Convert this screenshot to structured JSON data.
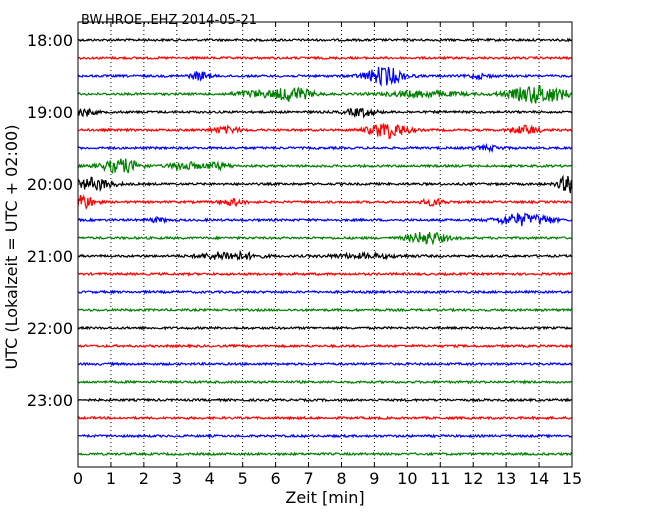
{
  "chart_data": {
    "type": "line",
    "title": "BW.HROE..EHZ 2014-05-21",
    "xlabel": "Zeit  [min]",
    "ylabel": "UTC (Lokalzeit = UTC + 02:00)",
    "xlim": [
      0,
      15
    ],
    "xticks": [
      "0",
      "1",
      "2",
      "3",
      "4",
      "5",
      "6",
      "7",
      "8",
      "9",
      "10",
      "11",
      "12",
      "13",
      "14",
      "15"
    ],
    "ylim": [
      "18:00",
      "23:45"
    ],
    "yticks": [
      "18:00",
      "19:00",
      "20:00",
      "21:00",
      "22:00",
      "23:00"
    ],
    "grid": "vertical dotted",
    "trace_colors": [
      "#000000",
      "#ff0000",
      "#0000ff",
      "#008000"
    ],
    "series": [
      {
        "start": "18:00",
        "color": "#000000",
        "events": []
      },
      {
        "start": "18:15",
        "color": "#ff0000",
        "events": []
      },
      {
        "start": "18:30",
        "color": "#0000ff",
        "events": [
          {
            "t": 3.7,
            "amp": 4,
            "dur": 0.4
          },
          {
            "t": 9.3,
            "amp": 9,
            "dur": 0.8
          },
          {
            "t": 12.2,
            "amp": 2,
            "dur": 0.5
          }
        ]
      },
      {
        "start": "18:45",
        "color": "#008000",
        "events": [
          {
            "t": 5.3,
            "amp": 3,
            "dur": 0.8
          },
          {
            "t": 6.5,
            "amp": 7,
            "dur": 0.8
          },
          {
            "t": 10.5,
            "amp": 3,
            "dur": 1.5
          },
          {
            "t": 14.0,
            "amp": 9,
            "dur": 1.2
          }
        ]
      },
      {
        "start": "19:00",
        "color": "#000000",
        "events": [
          {
            "t": 0.2,
            "amp": 4,
            "dur": 0.4
          },
          {
            "t": 8.6,
            "amp": 4,
            "dur": 0.6
          }
        ]
      },
      {
        "start": "19:15",
        "color": "#ff0000",
        "events": [
          {
            "t": 4.5,
            "amp": 3,
            "dur": 0.6
          },
          {
            "t": 9.4,
            "amp": 8,
            "dur": 0.8
          },
          {
            "t": 13.6,
            "amp": 4,
            "dur": 0.6
          }
        ]
      },
      {
        "start": "19:30",
        "color": "#0000ff",
        "events": [
          {
            "t": 12.5,
            "amp": 2,
            "dur": 0.6
          }
        ]
      },
      {
        "start": "19:45",
        "color": "#008000",
        "events": [
          {
            "t": 1.3,
            "amp": 7,
            "dur": 0.8
          },
          {
            "t": 3.2,
            "amp": 4,
            "dur": 0.6
          },
          {
            "t": 4.2,
            "amp": 3,
            "dur": 0.6
          }
        ]
      },
      {
        "start": "20:00",
        "color": "#000000",
        "events": [
          {
            "t": 0.5,
            "amp": 6,
            "dur": 0.8
          },
          {
            "t": 14.9,
            "amp": 9,
            "dur": 0.4
          }
        ]
      },
      {
        "start": "20:15",
        "color": "#ff0000",
        "events": [
          {
            "t": 0.1,
            "amp": 8,
            "dur": 0.5
          },
          {
            "t": 4.7,
            "amp": 3,
            "dur": 0.5
          },
          {
            "t": 10.8,
            "amp": 3,
            "dur": 0.5
          }
        ]
      },
      {
        "start": "20:30",
        "color": "#0000ff",
        "events": [
          {
            "t": 2.4,
            "amp": 2,
            "dur": 0.4
          },
          {
            "t": 13.4,
            "amp": 6,
            "dur": 0.9
          },
          {
            "t": 14.2,
            "amp": 3,
            "dur": 0.4
          }
        ]
      },
      {
        "start": "20:45",
        "color": "#008000",
        "events": [
          {
            "t": 10.6,
            "amp": 6,
            "dur": 0.8
          }
        ]
      },
      {
        "start": "21:00",
        "color": "#000000",
        "events": [
          {
            "t": 4.6,
            "amp": 4,
            "dur": 1.2
          },
          {
            "t": 8.7,
            "amp": 2,
            "dur": 1.5
          }
        ]
      },
      {
        "start": "21:15",
        "color": "#ff0000",
        "events": []
      },
      {
        "start": "21:30",
        "color": "#0000ff",
        "events": []
      },
      {
        "start": "21:45",
        "color": "#008000",
        "events": []
      },
      {
        "start": "22:00",
        "color": "#000000",
        "events": []
      },
      {
        "start": "22:15",
        "color": "#ff0000",
        "events": []
      },
      {
        "start": "22:30",
        "color": "#0000ff",
        "events": []
      },
      {
        "start": "22:45",
        "color": "#008000",
        "events": []
      },
      {
        "start": "23:00",
        "color": "#000000",
        "events": []
      },
      {
        "start": "23:15",
        "color": "#ff0000",
        "events": []
      },
      {
        "start": "23:30",
        "color": "#0000ff",
        "events": []
      },
      {
        "start": "23:45",
        "color": "#008000",
        "events": []
      }
    ]
  }
}
